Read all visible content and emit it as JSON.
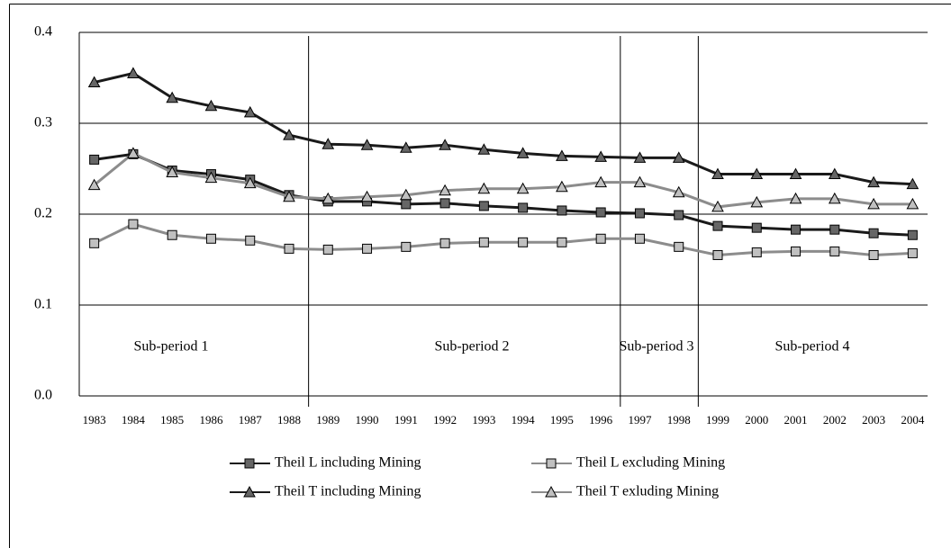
{
  "chart_data": {
    "type": "line",
    "categories": [
      "1983",
      "1984",
      "1985",
      "1986",
      "1987",
      "1988",
      "1989",
      "1990",
      "1991",
      "1992",
      "1993",
      "1994",
      "1995",
      "1996",
      "1997",
      "1998",
      "1999",
      "2000",
      "2001",
      "2002",
      "2003",
      "2004"
    ],
    "series": [
      {
        "name": "Theil L including Mining",
        "color": "#1a1a1a",
        "marker": "square",
        "marker_color": "#666666",
        "values": [
          0.26,
          0.266,
          0.248,
          0.244,
          0.238,
          0.221,
          0.214,
          0.214,
          0.211,
          0.212,
          0.209,
          0.207,
          0.204,
          0.202,
          0.201,
          0.199,
          0.187,
          0.185,
          0.183,
          0.183,
          0.179,
          0.177
        ]
      },
      {
        "name": "Theil L excluding Mining",
        "color": "#8c8c8c",
        "marker": "square",
        "marker_color": "#c0c0c0",
        "values": [
          0.168,
          0.189,
          0.177,
          0.173,
          0.171,
          0.162,
          0.161,
          0.162,
          0.164,
          0.168,
          0.169,
          0.169,
          0.169,
          0.173,
          0.173,
          0.164,
          0.155,
          0.158,
          0.159,
          0.159,
          0.155,
          0.157
        ]
      },
      {
        "name": "Theil T including Mining",
        "color": "#1a1a1a",
        "marker": "triangle",
        "marker_color": "#666666",
        "values": [
          0.345,
          0.355,
          0.328,
          0.319,
          0.312,
          0.287,
          0.277,
          0.276,
          0.273,
          0.276,
          0.271,
          0.267,
          0.264,
          0.263,
          0.262,
          0.262,
          0.244,
          0.244,
          0.244,
          0.244,
          0.235,
          0.233
        ]
      },
      {
        "name": "Theil T exluding Mining",
        "color": "#8c8c8c",
        "marker": "triangle",
        "marker_color": "#c0c0c0",
        "values": [
          0.232,
          0.267,
          0.246,
          0.24,
          0.234,
          0.219,
          0.217,
          0.219,
          0.221,
          0.226,
          0.228,
          0.228,
          0.23,
          0.235,
          0.235,
          0.224,
          0.208,
          0.213,
          0.217,
          0.217,
          0.211,
          0.211
        ]
      }
    ],
    "annotations": [
      "Sub-period 1",
      "Sub-period 2",
      "Sub-period 3",
      "Sub-period 4"
    ],
    "ylim": [
      0,
      0.4
    ],
    "yticks": [
      {
        "value": 0,
        "label": "0.0"
      },
      0.1,
      0.2,
      0.3,
      0.4
    ],
    "grid": true
  }
}
